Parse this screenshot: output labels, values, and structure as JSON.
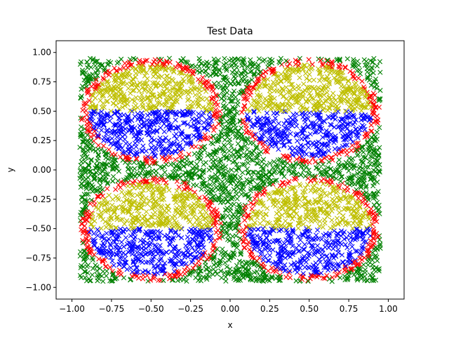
{
  "chart_data": {
    "type": "scatter",
    "title": "Test Data",
    "xlabel": "x",
    "ylabel": "y",
    "xlim": [
      -1.1,
      1.1
    ],
    "ylim": [
      -1.1,
      1.1
    ],
    "xticks": [
      -1.0,
      -0.75,
      -0.5,
      -0.25,
      0.0,
      0.25,
      0.5,
      0.75,
      1.0
    ],
    "xtick_labels": [
      "−1.00",
      "−0.75",
      "−0.50",
      "−0.25",
      "0.00",
      "0.25",
      "0.50",
      "0.75",
      "1.00"
    ],
    "yticks": [
      -1.0,
      -0.75,
      -0.5,
      -0.25,
      0.0,
      0.25,
      0.5,
      0.75,
      1.0
    ],
    "ytick_labels": [
      "−1.00",
      "−0.75",
      "−0.50",
      "−0.25",
      "0.00",
      "0.25",
      "0.50",
      "0.75",
      "1.00"
    ],
    "marker": "x",
    "grid": false,
    "legend": "none",
    "colors": {
      "background_class": "#008000",
      "upper_half_disc_class": "#bfbf00",
      "lower_half_disc_class": "#0000ff",
      "disc_boundary_class": "#ff0000"
    },
    "regions": {
      "domain": [
        [
          -0.95,
          0.95
        ],
        [
          -0.95,
          0.95
        ]
      ],
      "disc_centers": [
        [
          -0.5,
          0.5
        ],
        [
          0.5,
          0.5
        ],
        [
          -0.5,
          -0.5
        ],
        [
          0.5,
          -0.5
        ]
      ],
      "disc_radius": 0.42,
      "boundary_band": 0.025,
      "upper_half": "y above disc center",
      "lower_half": "y below disc center"
    },
    "sample_count": 5000
  }
}
